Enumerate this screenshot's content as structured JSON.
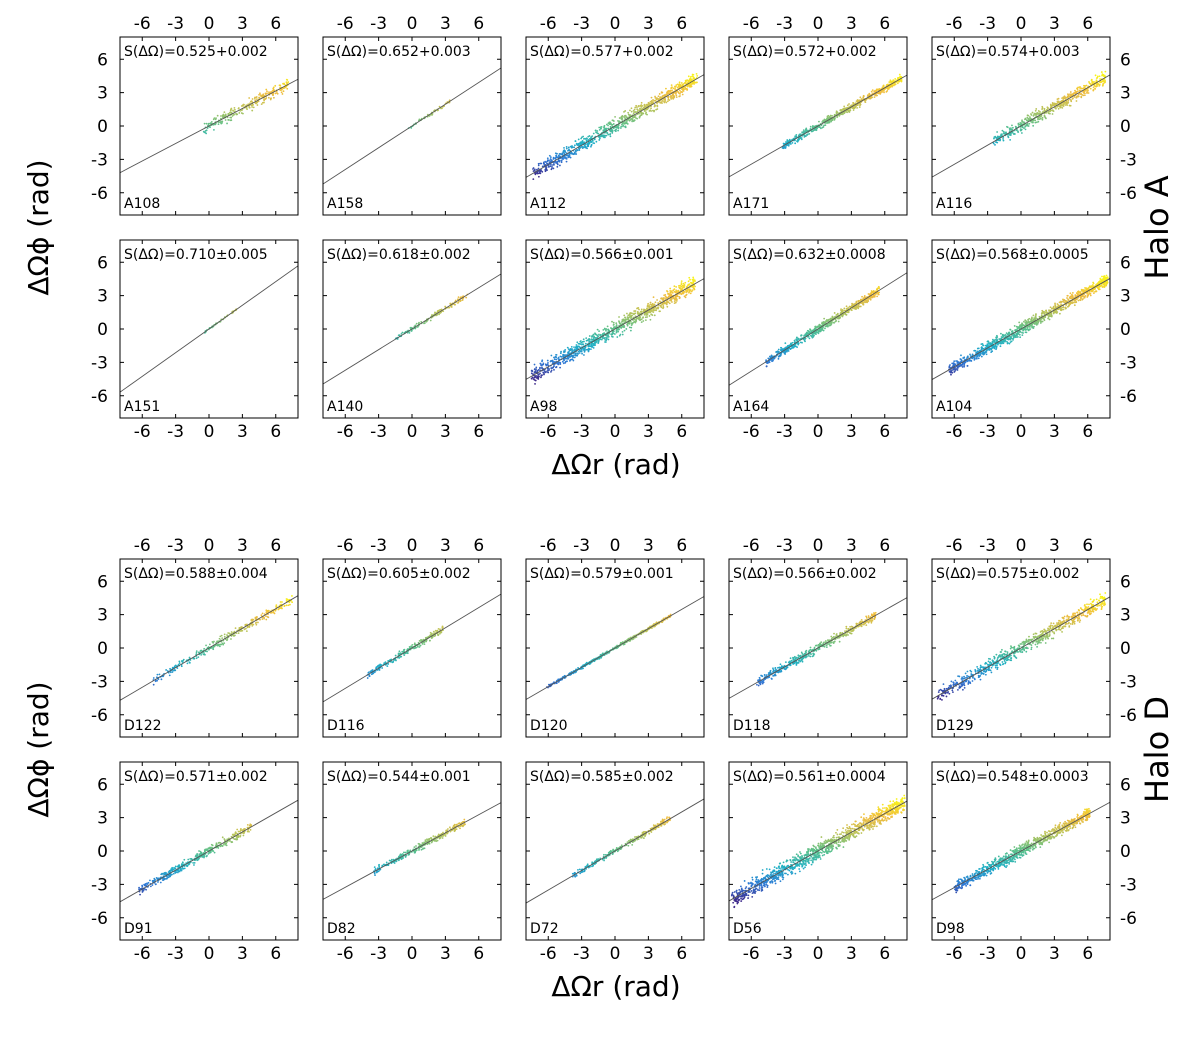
{
  "chart_data": {
    "type": "scatter",
    "xlim": [
      -8,
      8
    ],
    "ylim": [
      -8,
      8
    ],
    "ticks": [
      "-6",
      "-3",
      "0",
      "3",
      "6"
    ],
    "tick_values": [
      -6,
      -3,
      0,
      3,
      6
    ],
    "colormap": [
      "#3e2a8c",
      "#2f7ad6",
      "#1fb0c6",
      "#59c08c",
      "#b9c45a",
      "#f0bc3e",
      "#f8f21a"
    ],
    "groups": [
      {
        "label": "Halo A",
        "xlabel": "ΔΩr (rad)",
        "ylabel": "ΔΩϕ (rad)",
        "panels": [
          {
            "id": "A108",
            "stat": "S(ΔΩ)=0.525+0.002",
            "slope": 0.525,
            "xrange": [
              -0.5,
              7.2
            ],
            "spread": 0.45,
            "count": 260
          },
          {
            "id": "A158",
            "stat": "S(ΔΩ)=0.652+0.003",
            "slope": 0.652,
            "xrange": [
              -0.5,
              3.5
            ],
            "spread": 0.12,
            "count": 50
          },
          {
            "id": "A112",
            "stat": "S(ΔΩ)=0.577+0.002",
            "slope": 0.577,
            "xrange": [
              -7.4,
              7.4
            ],
            "spread": 0.55,
            "count": 900
          },
          {
            "id": "A171",
            "stat": "S(ΔΩ)=0.572+0.002",
            "slope": 0.572,
            "xrange": [
              -3.2,
              7.6
            ],
            "spread": 0.3,
            "count": 600
          },
          {
            "id": "A116",
            "stat": "S(ΔΩ)=0.574+0.003",
            "slope": 0.574,
            "xrange": [
              -2.5,
              7.6
            ],
            "spread": 0.5,
            "count": 520
          },
          {
            "id": "A151",
            "stat": "S(ΔΩ)=0.710±0.005",
            "slope": 0.71,
            "xrange": [
              -0.4,
              2.5
            ],
            "spread": 0.08,
            "count": 40
          },
          {
            "id": "A140",
            "stat": "S(ΔΩ)=0.618±0.002",
            "slope": 0.618,
            "xrange": [
              -1.5,
              5.0
            ],
            "spread": 0.2,
            "count": 160
          },
          {
            "id": "A98",
            "stat": "S(ΔΩ)=0.566±0.001",
            "slope": 0.566,
            "xrange": [
              -7.5,
              7.2
            ],
            "spread": 0.6,
            "count": 1000
          },
          {
            "id": "A164",
            "stat": "S(ΔΩ)=0.632±0.0008",
            "slope": 0.632,
            "xrange": [
              -4.8,
              5.5
            ],
            "spread": 0.35,
            "count": 700
          },
          {
            "id": "A104",
            "stat": "S(ΔΩ)=0.568±0.0005",
            "slope": 0.568,
            "xrange": [
              -6.5,
              7.8
            ],
            "spread": 0.45,
            "count": 1100
          }
        ]
      },
      {
        "label": "Halo D",
        "xlabel": "ΔΩr (rad)",
        "ylabel": "ΔΩϕ (rad)",
        "panels": [
          {
            "id": "D122",
            "stat": "S(ΔΩ)=0.588±0.004",
            "slope": 0.588,
            "xrange": [
              -5.0,
              7.5
            ],
            "spread": 0.35,
            "count": 320
          },
          {
            "id": "D116",
            "stat": "S(ΔΩ)=0.605±0.002",
            "slope": 0.605,
            "xrange": [
              -4.0,
              2.8
            ],
            "spread": 0.25,
            "count": 260
          },
          {
            "id": "D120",
            "stat": "S(ΔΩ)=0.579±0.001",
            "slope": 0.579,
            "xrange": [
              -6.2,
              5.0
            ],
            "spread": 0.12,
            "count": 420
          },
          {
            "id": "D118",
            "stat": "S(ΔΩ)=0.566±0.002",
            "slope": 0.566,
            "xrange": [
              -5.5,
              5.2
            ],
            "spread": 0.35,
            "count": 480
          },
          {
            "id": "D129",
            "stat": "S(ΔΩ)=0.575±0.002",
            "slope": 0.575,
            "xrange": [
              -7.5,
              7.6
            ],
            "spread": 0.55,
            "count": 750
          },
          {
            "id": "D91",
            "stat": "S(ΔΩ)=0.571±0.002",
            "slope": 0.571,
            "xrange": [
              -6.3,
              3.8
            ],
            "spread": 0.35,
            "count": 420
          },
          {
            "id": "D82",
            "stat": "S(ΔΩ)=0.544±0.001",
            "slope": 0.544,
            "xrange": [
              -3.5,
              4.8
            ],
            "spread": 0.25,
            "count": 330
          },
          {
            "id": "D72",
            "stat": "S(ΔΩ)=0.585±0.002",
            "slope": 0.585,
            "xrange": [
              -3.8,
              5.0
            ],
            "spread": 0.22,
            "count": 260
          },
          {
            "id": "D56",
            "stat": "S(ΔΩ)=0.561±0.0004",
            "slope": 0.561,
            "xrange": [
              -7.8,
              7.8
            ],
            "spread": 0.65,
            "count": 1200
          },
          {
            "id": "D98",
            "stat": "S(ΔΩ)=0.548±0.0003",
            "slope": 0.548,
            "xrange": [
              -6.0,
              6.2
            ],
            "spread": 0.45,
            "count": 900
          }
        ]
      }
    ]
  }
}
